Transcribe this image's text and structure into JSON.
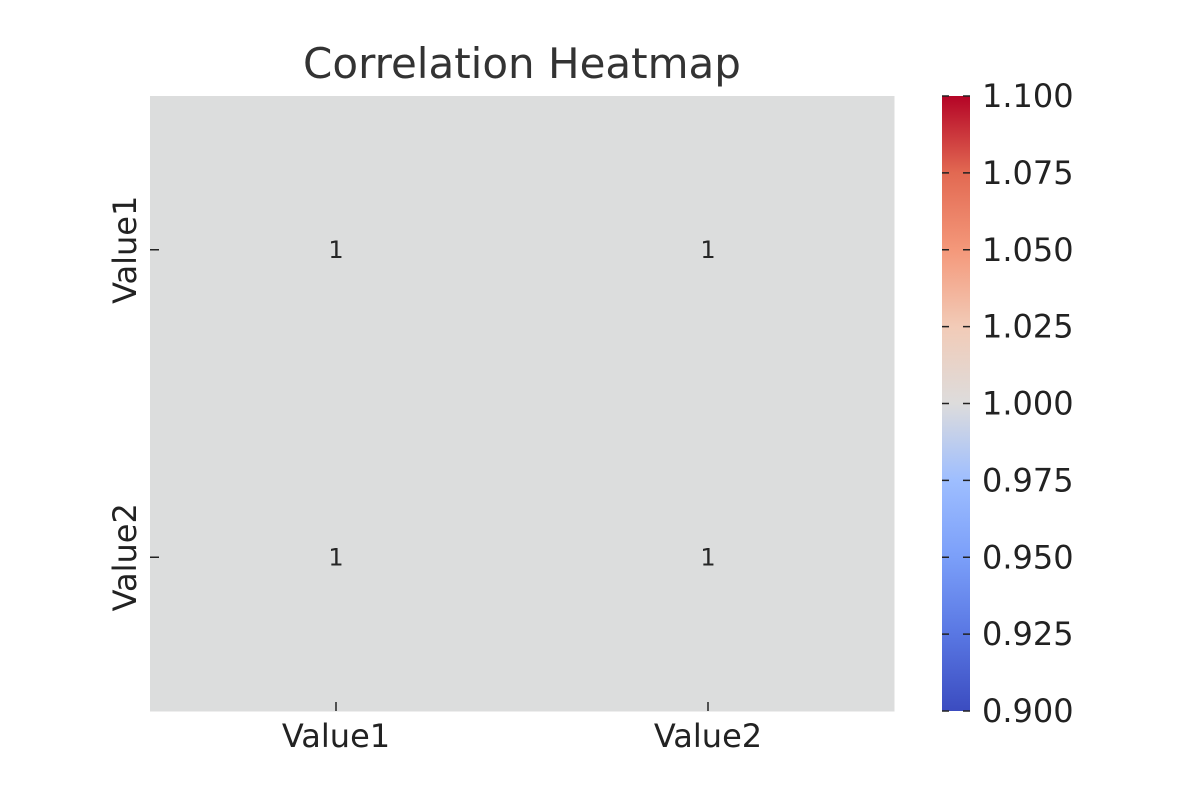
{
  "chart_data": {
    "type": "heatmap",
    "title": "Correlation Heatmap",
    "x_categories": [
      "Value1",
      "Value2"
    ],
    "y_categories": [
      "Value1",
      "Value2"
    ],
    "values": [
      [
        1,
        1
      ],
      [
        1,
        1
      ]
    ],
    "annotations": [
      [
        "1",
        "1"
      ],
      [
        "1",
        "1"
      ]
    ],
    "colorbar": {
      "colormap": "coolwarm",
      "range": [
        0.9,
        1.1
      ],
      "ticks": [
        0.9,
        0.925,
        0.95,
        0.975,
        1.0,
        1.025,
        1.05,
        1.075,
        1.1
      ],
      "tick_labels": [
        "0.900",
        "0.925",
        "0.950",
        "0.975",
        "1.000",
        "1.025",
        "1.050",
        "1.075",
        "1.100"
      ]
    },
    "grid": false
  },
  "colors": {
    "cell": "#dcdddd",
    "cmap_low": "#3b4cc0",
    "cmap_mid": "#dddcdc",
    "cmap_high": "#b40426"
  }
}
